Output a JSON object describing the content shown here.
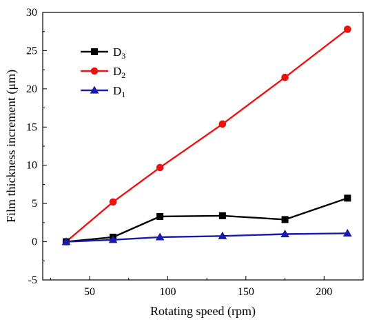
{
  "chart_data": {
    "type": "line",
    "xlabel": "Rotating speed (rpm)",
    "ylabel": "Film thickness increment (μm)",
    "xlim": [
      20,
      225
    ],
    "ylim": [
      -5,
      30
    ],
    "xticks": [
      50,
      100,
      150,
      200
    ],
    "yticks": [
      -5,
      0,
      5,
      10,
      15,
      20,
      25,
      30
    ],
    "grid": false,
    "legend_position": "upper-left",
    "series": [
      {
        "name": "D3",
        "label_main": "D",
        "label_sub": "3",
        "color": "#000000",
        "marker": "square",
        "x": [
          35,
          65,
          95,
          135,
          175,
          215
        ],
        "y": [
          0.0,
          0.6,
          3.3,
          3.4,
          2.9,
          5.7
        ]
      },
      {
        "name": "D2",
        "label_main": "D",
        "label_sub": "2",
        "color": "#ee1111",
        "marker": "circle",
        "x": [
          35,
          65,
          95,
          135,
          175,
          215
        ],
        "y": [
          0.0,
          5.2,
          9.7,
          15.4,
          21.5,
          27.8
        ]
      },
      {
        "name": "D1",
        "label_main": "D",
        "label_sub": "1",
        "color": "#1a1aaa",
        "marker": "triangle",
        "x": [
          35,
          65,
          95,
          135,
          175,
          215
        ],
        "y": [
          0.0,
          0.25,
          0.6,
          0.75,
          1.0,
          1.1
        ]
      }
    ]
  }
}
